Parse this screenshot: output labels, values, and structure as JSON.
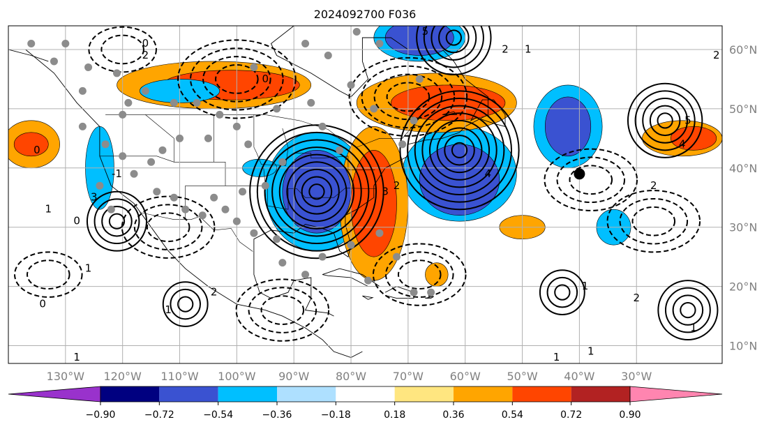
{
  "chart_data": {
    "type": "heatmap",
    "title": "2024092700 F036",
    "projection": "lat-lon map, North America and North Atlantic",
    "lon_range": [
      -140,
      -15
    ],
    "lat_range": [
      7,
      64
    ],
    "grid": true,
    "lon_ticks": [
      "130°W",
      "120°W",
      "110°W",
      "100°W",
      "90°W",
      "80°W",
      "70°W",
      "60°W",
      "50°W",
      "40°W",
      "30°W"
    ],
    "lon_tick_values": [
      -130,
      -120,
      -110,
      -100,
      -90,
      -80,
      -70,
      -60,
      -50,
      -40,
      -30
    ],
    "lat_ticks": [
      "10°N",
      "20°N",
      "30°N",
      "40°N",
      "50°N",
      "60°N"
    ],
    "lat_tick_values": [
      10,
      20,
      30,
      40,
      50,
      60
    ],
    "colorbar": {
      "orientation": "horizontal",
      "extend": "both",
      "levels": [
        -0.9,
        -0.72,
        -0.54,
        -0.36,
        -0.18,
        0.18,
        0.36,
        0.54,
        0.72,
        0.9
      ],
      "tick_labels": [
        "−0.90",
        "−0.72",
        "−0.54",
        "−0.36",
        "−0.18",
        "0.18",
        "0.36",
        "0.54",
        "0.72",
        "0.90"
      ],
      "colors": [
        "#9932cc",
        "#000080",
        "#3a52d1",
        "#00bfff",
        "#aee0ff",
        "#ffffff",
        "#ffe680",
        "#ffa500",
        "#ff4500",
        "#b22222",
        "#ff85b0"
      ]
    },
    "filled_anomalies": [
      {
        "lon": -86,
        "lat": 36,
        "rx": 6,
        "ry": 7,
        "level": -0.54
      },
      {
        "lon": -86,
        "lat": 36,
        "rx": 9,
        "ry": 10,
        "level": -0.36
      },
      {
        "lon": -76,
        "lat": 34,
        "rx": 4,
        "ry": 9,
        "level": 0.72
      },
      {
        "lon": -76,
        "lat": 34,
        "rx": 6,
        "ry": 13,
        "level": 0.54
      },
      {
        "lon": -61,
        "lat": 38,
        "rx": 7,
        "ry": 6,
        "level": -0.54
      },
      {
        "lon": -61,
        "lat": 39,
        "rx": 10,
        "ry": 8,
        "level": -0.36
      },
      {
        "lon": -63,
        "lat": 51,
        "rx": 10,
        "ry": 3,
        "level": 0.72
      },
      {
        "lon": -65,
        "lat": 51,
        "rx": 14,
        "ry": 5,
        "level": 0.54
      },
      {
        "lon": -101,
        "lat": 54,
        "rx": 12,
        "ry": 2.5,
        "level": 0.72
      },
      {
        "lon": -104,
        "lat": 54,
        "rx": 17,
        "ry": 4,
        "level": 0.54
      },
      {
        "lon": -68,
        "lat": 62,
        "rx": 6,
        "ry": 3,
        "level": -0.54
      },
      {
        "lon": -68,
        "lat": 62,
        "rx": 8,
        "ry": 4,
        "level": -0.36
      },
      {
        "lon": -42,
        "lat": 47,
        "rx": 4,
        "ry": 5,
        "level": -0.54
      },
      {
        "lon": -42,
        "lat": 47,
        "rx": 6,
        "ry": 7,
        "level": -0.36
      },
      {
        "lon": -136,
        "lat": 44,
        "rx": 3,
        "ry": 2,
        "level": 0.72
      },
      {
        "lon": -136,
        "lat": 44,
        "rx": 5,
        "ry": 4,
        "level": 0.54
      },
      {
        "lon": -20,
        "lat": 45,
        "rx": 4,
        "ry": 2,
        "level": 0.72
      },
      {
        "lon": -22,
        "lat": 45,
        "rx": 7,
        "ry": 3,
        "level": 0.54
      },
      {
        "lon": -124,
        "lat": 40,
        "rx": 2.5,
        "ry": 7,
        "level": -0.36
      },
      {
        "lon": -50,
        "lat": 30,
        "rx": 4,
        "ry": 2,
        "level": 0.54
      },
      {
        "lon": -34,
        "lat": 30,
        "rx": 3,
        "ry": 3,
        "level": -0.36
      },
      {
        "lon": -65,
        "lat": 22,
        "rx": 2,
        "ry": 2,
        "level": 0.54
      },
      {
        "lon": -110,
        "lat": 53,
        "rx": 7,
        "ry": 2,
        "level": -0.36
      },
      {
        "lon": -96,
        "lat": 40,
        "rx": 3,
        "ry": 1.5,
        "level": -0.36
      }
    ],
    "solid_contour_centers": [
      {
        "lon": -86,
        "lat": 36,
        "n": 9
      },
      {
        "lon": -61,
        "lat": 43,
        "n": 8
      },
      {
        "lon": -121,
        "lat": 31,
        "n": 4
      },
      {
        "lon": -25,
        "lat": 48,
        "n": 5
      },
      {
        "lon": -109,
        "lat": 17,
        "n": 3
      },
      {
        "lon": -43,
        "lat": 19,
        "n": 3
      },
      {
        "lon": -21,
        "lat": 16,
        "n": 4
      },
      {
        "lon": -62,
        "lat": 62,
        "n": 5
      }
    ],
    "dashed_contour_centers": [
      {
        "lon": -100,
        "lat": 55,
        "n": 4
      },
      {
        "lon": -70,
        "lat": 52,
        "n": 4
      },
      {
        "lon": -112,
        "lat": 30,
        "n": 3
      },
      {
        "lon": -92,
        "lat": 16,
        "n": 3
      },
      {
        "lon": -68,
        "lat": 22,
        "n": 3
      },
      {
        "lon": -38,
        "lat": 38,
        "n": 3
      },
      {
        "lon": -27,
        "lat": 31,
        "n": 3
      },
      {
        "lon": -133,
        "lat": 22,
        "n": 2
      },
      {
        "lon": -120,
        "lat": 60,
        "n": 2
      }
    ],
    "contour_labels": [
      {
        "lon": -135,
        "lat": 43,
        "text": "0"
      },
      {
        "lon": -125,
        "lat": 35,
        "text": "3"
      },
      {
        "lon": -126,
        "lat": 23,
        "text": "1"
      },
      {
        "lon": -112,
        "lat": 16,
        "text": "1"
      },
      {
        "lon": -104,
        "lat": 19,
        "text": "2"
      },
      {
        "lon": -56,
        "lat": 39,
        "text": "4"
      },
      {
        "lon": -22,
        "lat": 44,
        "text": "4"
      },
      {
        "lon": -21,
        "lat": 48,
        "text": "5"
      },
      {
        "lon": -39,
        "lat": 20,
        "text": "1"
      },
      {
        "lon": -30,
        "lat": 18,
        "text": "2"
      },
      {
        "lon": -20,
        "lat": 13,
        "text": "1"
      },
      {
        "lon": -38,
        "lat": 9,
        "text": "1"
      },
      {
        "lon": -44,
        "lat": 8,
        "text": "1"
      },
      {
        "lon": -128,
        "lat": 8,
        "text": "1"
      },
      {
        "lon": -134,
        "lat": 17,
        "text": "0"
      },
      {
        "lon": -53,
        "lat": 60,
        "text": "2"
      },
      {
        "lon": -49,
        "lat": 60,
        "text": "1"
      },
      {
        "lon": -67,
        "lat": 63,
        "text": "5"
      },
      {
        "lon": -116,
        "lat": 59,
        "text": "2"
      },
      {
        "lon": -74,
        "lat": 36,
        "text": "3"
      },
      {
        "lon": -27,
        "lat": 37,
        "text": "2"
      },
      {
        "lon": -133,
        "lat": 33,
        "text": "1"
      },
      {
        "lon": -128,
        "lat": 31,
        "text": "0"
      },
      {
        "lon": -121,
        "lat": 39,
        "text": "-1"
      },
      {
        "lon": -95,
        "lat": 55,
        "text": "0"
      },
      {
        "lon": -116,
        "lat": 61,
        "text": "0"
      },
      {
        "lon": -72,
        "lat": 37,
        "text": "2"
      },
      {
        "lon": -16,
        "lat": 59,
        "text": "2"
      }
    ],
    "dots": [
      {
        "lon": -130,
        "lat": 61
      },
      {
        "lon": -126,
        "lat": 57
      },
      {
        "lon": -127,
        "lat": 53
      },
      {
        "lon": -121,
        "lat": 56
      },
      {
        "lon": -120,
        "lat": 49
      },
      {
        "lon": -119,
        "lat": 51
      },
      {
        "lon": -116,
        "lat": 53
      },
      {
        "lon": -111,
        "lat": 51
      },
      {
        "lon": -107,
        "lat": 51
      },
      {
        "lon": -103,
        "lat": 49
      },
      {
        "lon": -100,
        "lat": 47
      },
      {
        "lon": -98,
        "lat": 44
      },
      {
        "lon": -105,
        "lat": 45
      },
      {
        "lon": -110,
        "lat": 45
      },
      {
        "lon": -113,
        "lat": 43
      },
      {
        "lon": -115,
        "lat": 41
      },
      {
        "lon": -120,
        "lat": 42
      },
      {
        "lon": -118,
        "lat": 39
      },
      {
        "lon": -114,
        "lat": 36
      },
      {
        "lon": -111,
        "lat": 35
      },
      {
        "lon": -109,
        "lat": 33
      },
      {
        "lon": -106,
        "lat": 32
      },
      {
        "lon": -102,
        "lat": 33
      },
      {
        "lon": -100,
        "lat": 31
      },
      {
        "lon": -97,
        "lat": 29
      },
      {
        "lon": -93,
        "lat": 28
      },
      {
        "lon": -92,
        "lat": 24
      },
      {
        "lon": -88,
        "lat": 22
      },
      {
        "lon": -85,
        "lat": 25
      },
      {
        "lon": -80,
        "lat": 27
      },
      {
        "lon": -75,
        "lat": 29
      },
      {
        "lon": -72,
        "lat": 25
      },
      {
        "lon": -77,
        "lat": 21
      },
      {
        "lon": -69,
        "lat": 19
      },
      {
        "lon": -66,
        "lat": 19
      },
      {
        "lon": -71,
        "lat": 44
      },
      {
        "lon": -69,
        "lat": 48
      },
      {
        "lon": -76,
        "lat": 50
      },
      {
        "lon": -80,
        "lat": 54
      },
      {
        "lon": -84,
        "lat": 59
      },
      {
        "lon": -79,
        "lat": 63
      },
      {
        "lon": -75,
        "lat": 61
      },
      {
        "lon": -68,
        "lat": 55
      },
      {
        "lon": -93,
        "lat": 50
      },
      {
        "lon": -97,
        "lat": 57
      },
      {
        "lon": -88,
        "lat": 61
      },
      {
        "lon": -82,
        "lat": 43
      },
      {
        "lon": -85,
        "lat": 47
      },
      {
        "lon": -87,
        "lat": 51
      },
      {
        "lon": -92,
        "lat": 41
      },
      {
        "lon": -95,
        "lat": 37
      },
      {
        "lon": -99,
        "lat": 36
      },
      {
        "lon": -104,
        "lat": 35
      },
      {
        "lon": -127,
        "lat": 47
      },
      {
        "lon": -132,
        "lat": 58
      },
      {
        "lon": -136,
        "lat": 61
      },
      {
        "lon": -124,
        "lat": 37
      },
      {
        "lon": -122,
        "lat": 33
      },
      {
        "lon": -123,
        "lat": 44
      }
    ],
    "marker": {
      "lon": -40,
      "lat": 39
    }
  }
}
